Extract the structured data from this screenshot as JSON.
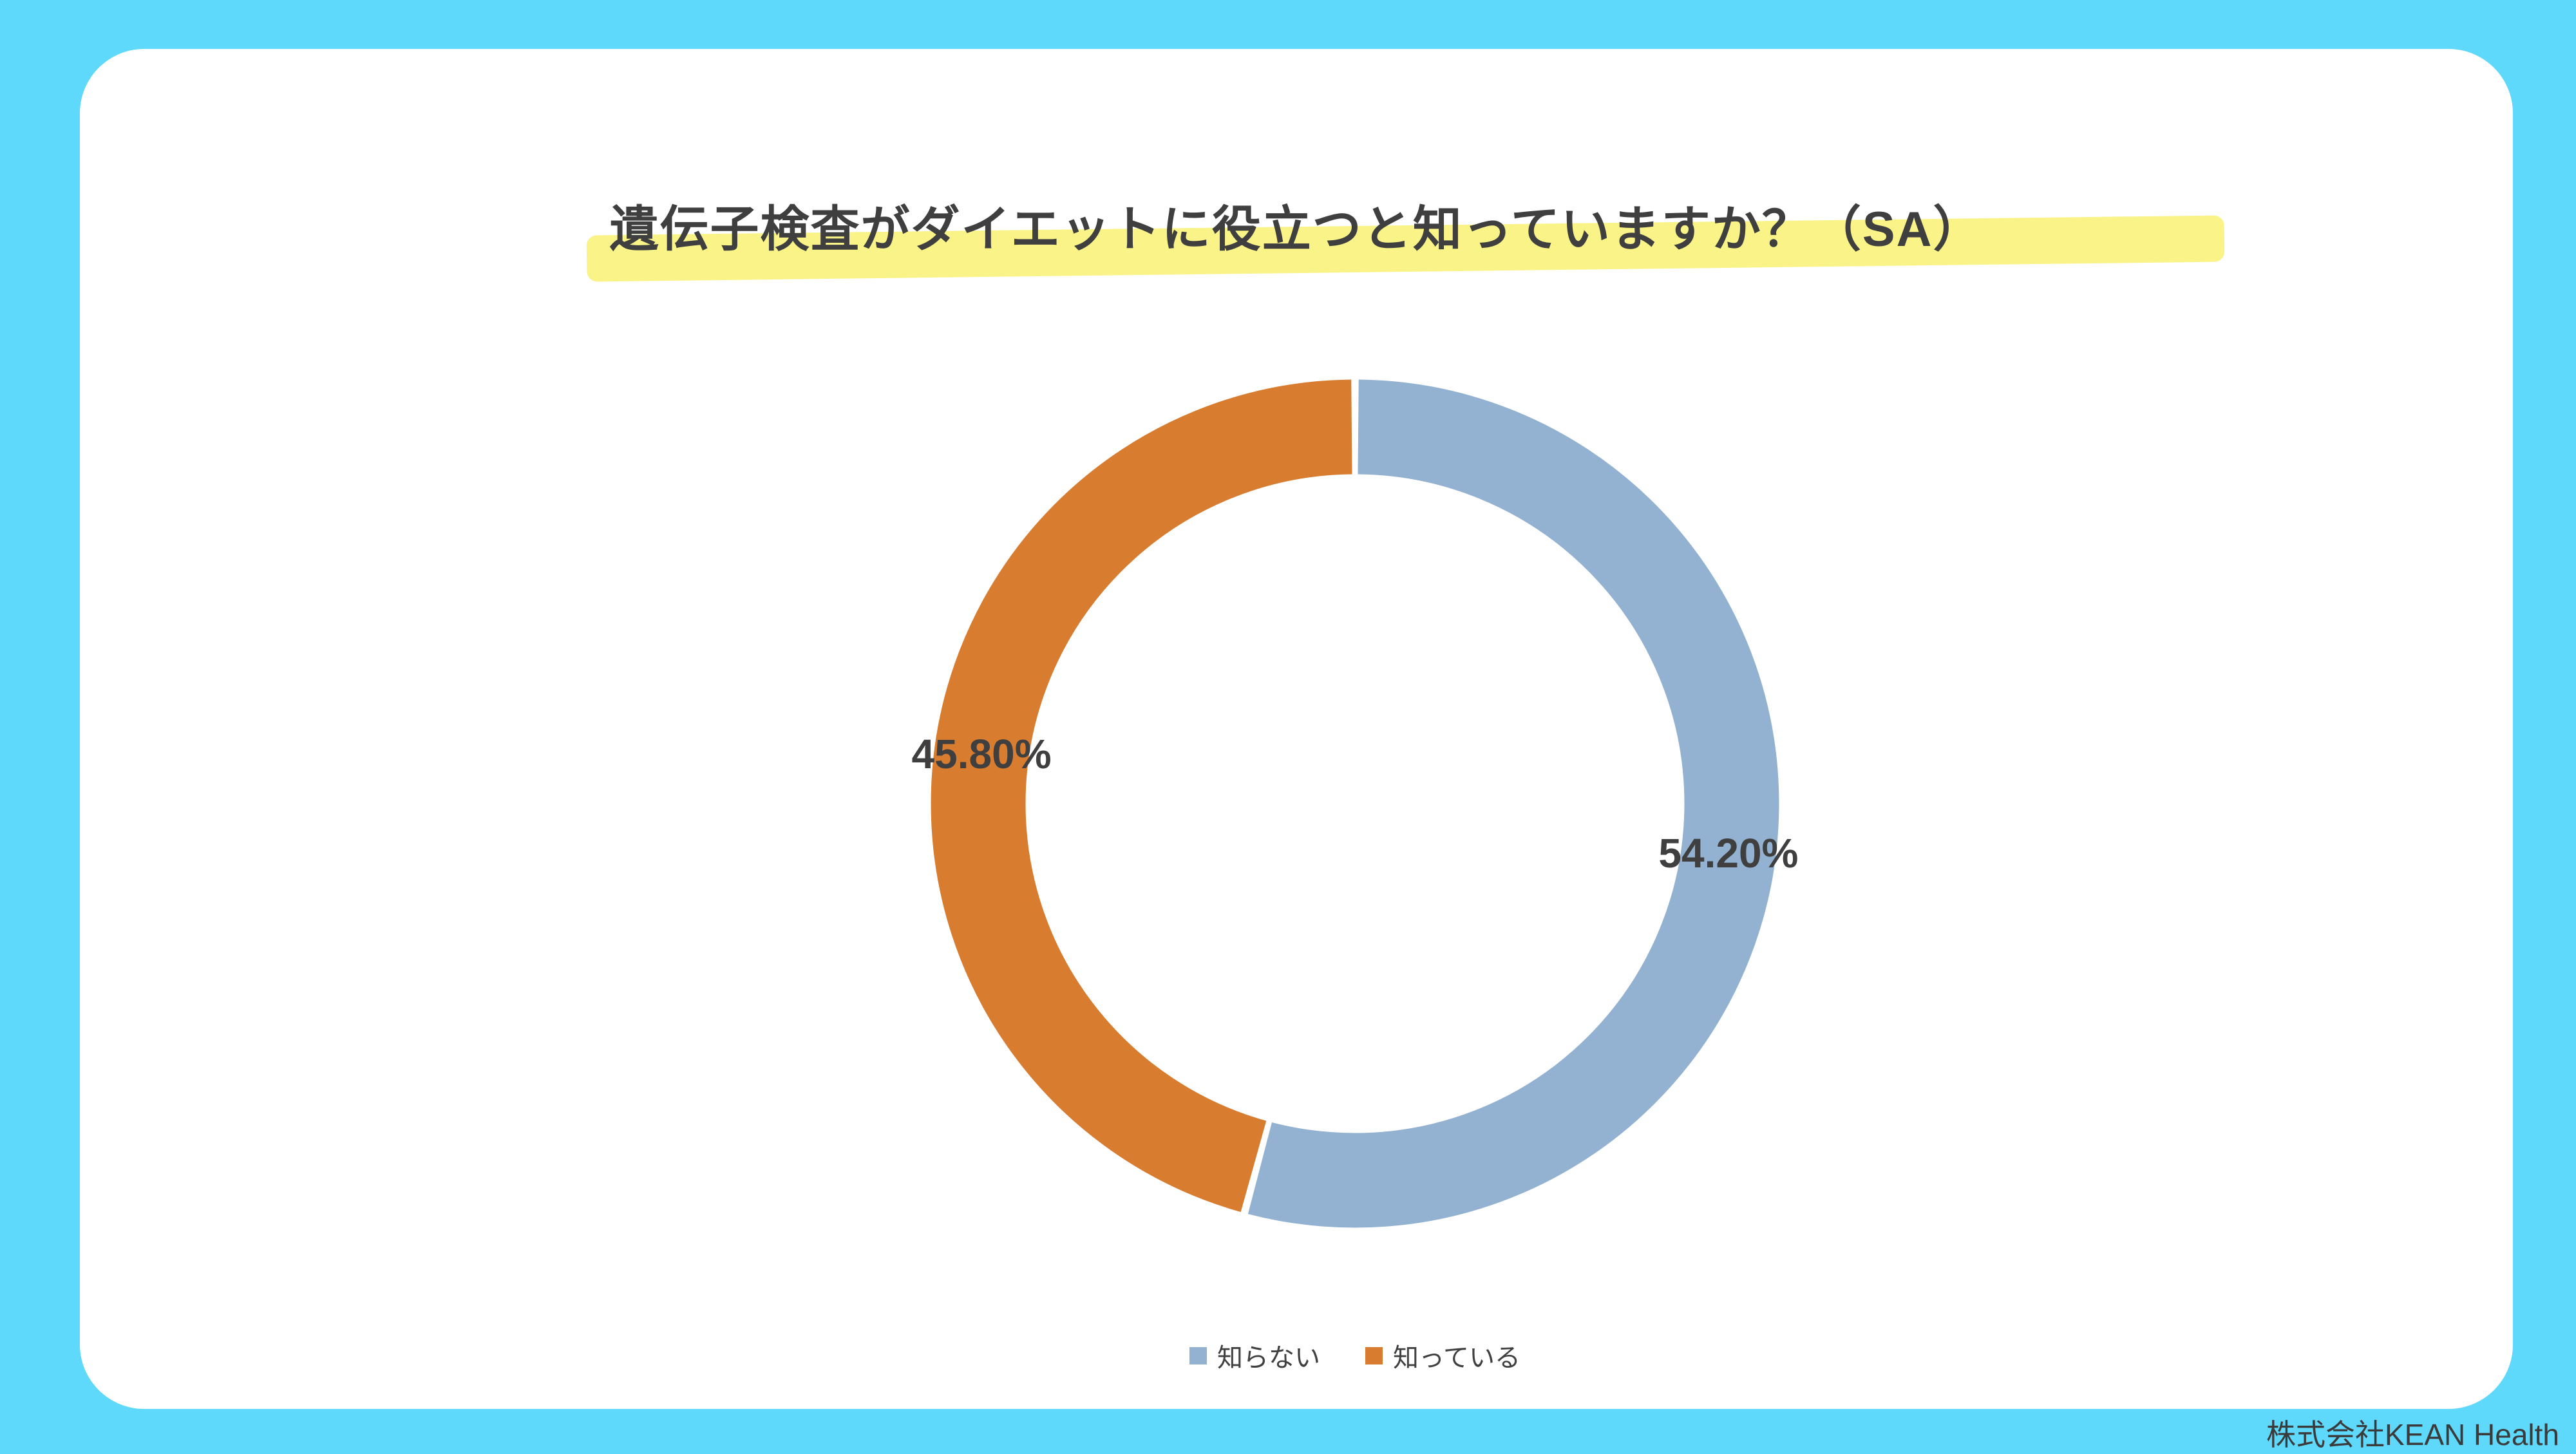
{
  "page": {
    "background_color": "#5ed9fc",
    "card_color": "#ffffff",
    "title_highlight_color": "#f9f388",
    "text_color": "#3f3f3f"
  },
  "chart_data": {
    "type": "pie",
    "subtype": "donut",
    "title": "遺伝子検査がダイエットに役立つと知っていますか？（SA）",
    "start_angle_deg": 0,
    "direction": "clockwise",
    "legend_position": "bottom",
    "label_color": "#3f3f3f",
    "segments": [
      {
        "label": "知らない",
        "value": 54.2,
        "display": "54.20%",
        "color": "#93b1d1"
      },
      {
        "label": "知っている",
        "value": 45.8,
        "display": "45.80%",
        "color": "#d87c30"
      }
    ]
  },
  "footer": {
    "company": "株式会社KEAN Health"
  }
}
